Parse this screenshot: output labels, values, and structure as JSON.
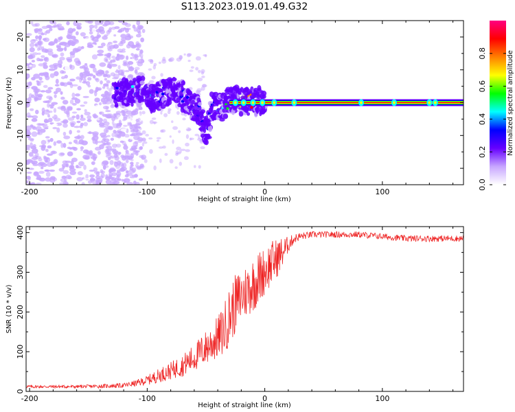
{
  "title": "S113.2023.019.01.49.G32",
  "chart_data": [
    {
      "type": "heatmap",
      "xlabel": "Height of straight line (km)",
      "ylabel": "Frequency (Hz)",
      "xlim": [
        -203,
        169
      ],
      "ylim": [
        -25,
        25
      ],
      "xticks": [
        -200,
        -100,
        0,
        100
      ],
      "xtick_labels": [
        "-200",
        "-100",
        "0",
        "100"
      ],
      "yticks": [
        -20,
        -10,
        0,
        10,
        20
      ],
      "ytick_labels": [
        "-20",
        "-10",
        "0",
        "10",
        "20"
      ],
      "colorbar": {
        "label": "Normalized spectral amplitude",
        "range": [
          0,
          1
        ],
        "ticks": [
          0.0,
          0.2,
          0.4,
          0.6,
          0.8
        ],
        "tick_labels": [
          "0.0",
          "0.2",
          "0.4",
          "0.6",
          "0.8"
        ],
        "colors": [
          "#ffffff",
          "#c7a6ff",
          "#6600ff",
          "#0000ff",
          "#00ffff",
          "#00ff00",
          "#ffff00",
          "#ff8000",
          "#ff0000",
          "#ff0080"
        ]
      },
      "ridge": {
        "x": [
          -125,
          -115,
          -105,
          -95,
          -85,
          -75,
          -65,
          -55,
          -50,
          -45,
          -40,
          -35,
          -30,
          -20,
          -10,
          0,
          10,
          20,
          40,
          60,
          80,
          100,
          120,
          140,
          160,
          169
        ],
        "frequency": [
          3,
          3,
          4,
          1,
          3,
          4,
          0,
          -3,
          -10,
          -1,
          -1,
          -2,
          1,
          0.5,
          0.5,
          0.5,
          0,
          0,
          0,
          0,
          0,
          0,
          0,
          0,
          0,
          0
        ],
        "amplitude": [
          0.2,
          0.3,
          0.3,
          0.3,
          0.25,
          0.3,
          0.25,
          0.2,
          0.15,
          0.25,
          0.3,
          0.35,
          0.5,
          0.6,
          0.75,
          0.85,
          0.88,
          0.9,
          0.9,
          0.9,
          0.9,
          0.9,
          0.9,
          0.9,
          0.9,
          0.9
        ]
      }
    },
    {
      "type": "line",
      "xlabel": "Height of straight line (km)",
      "ylabel": "SNR (10 * v/v)",
      "xlim": [
        -203,
        169
      ],
      "ylim": [
        0,
        415
      ],
      "xticks": [
        -200,
        -100,
        0,
        100
      ],
      "xtick_labels": [
        "-200",
        "-100",
        "0",
        "100"
      ],
      "yticks": [
        0,
        100,
        200,
        300,
        400
      ],
      "ytick_labels": [
        "0",
        "100",
        "200",
        "300",
        "400"
      ],
      "series": [
        {
          "color": "#ee2222",
          "x": [
            -203,
            -180,
            -160,
            -140,
            -120,
            -110,
            -100,
            -90,
            -80,
            -70,
            -60,
            -50,
            -40,
            -35,
            -30,
            -25,
            -20,
            -15,
            -10,
            -5,
            0,
            5,
            10,
            15,
            20,
            25,
            30,
            40,
            60,
            80,
            100,
            120,
            140,
            160,
            169
          ],
          "y": [
            12,
            12,
            12,
            13,
            15,
            20,
            28,
            40,
            52,
            65,
            85,
            110,
            135,
            155,
            190,
            220,
            240,
            255,
            270,
            285,
            305,
            320,
            335,
            350,
            370,
            385,
            390,
            395,
            395,
            395,
            390,
            385,
            385,
            385,
            385
          ],
          "noise": [
            4,
            4,
            4,
            5,
            6,
            8,
            12,
            18,
            22,
            28,
            35,
            45,
            55,
            65,
            75,
            75,
            70,
            70,
            70,
            70,
            60,
            60,
            50,
            40,
            20,
            12,
            10,
            8,
            8,
            8,
            8,
            8,
            8,
            8,
            8
          ]
        }
      ]
    }
  ]
}
